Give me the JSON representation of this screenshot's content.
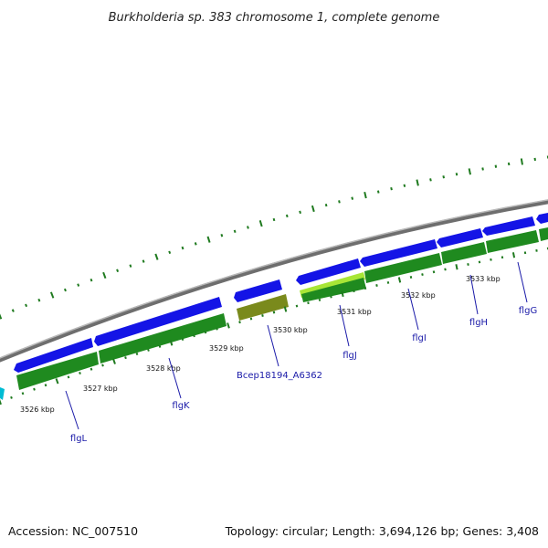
{
  "title": "Burkholderia sp. 383 chromosome 1, complete genome",
  "accession_text": "Accession: NC_007510",
  "summary_text": "Topology: circular; Length: 3,694,126 bp; Genes: 3,408",
  "colors": {
    "forward_cds": "#1414e6",
    "reverse_cds": "#1f8a1f",
    "selected_cds": "#7a8a1c",
    "highlight_cds": "#a8e636",
    "backbone": "#888888",
    "tick": "#1f7a1f",
    "label_link": "#1a1aa8",
    "edge_feature": "#00bcd4"
  },
  "scale_labels": [
    "3526 kbp",
    "3527 kbp",
    "3528 kbp",
    "3529 kbp",
    "3530 kbp",
    "3531 kbp",
    "3532 kbp",
    "3533 kbp"
  ],
  "gene_labels": [
    "flgL",
    "flgK",
    "Bcep18194_A6362",
    "flgJ",
    "flgI",
    "flgH",
    "flgG"
  ]
}
